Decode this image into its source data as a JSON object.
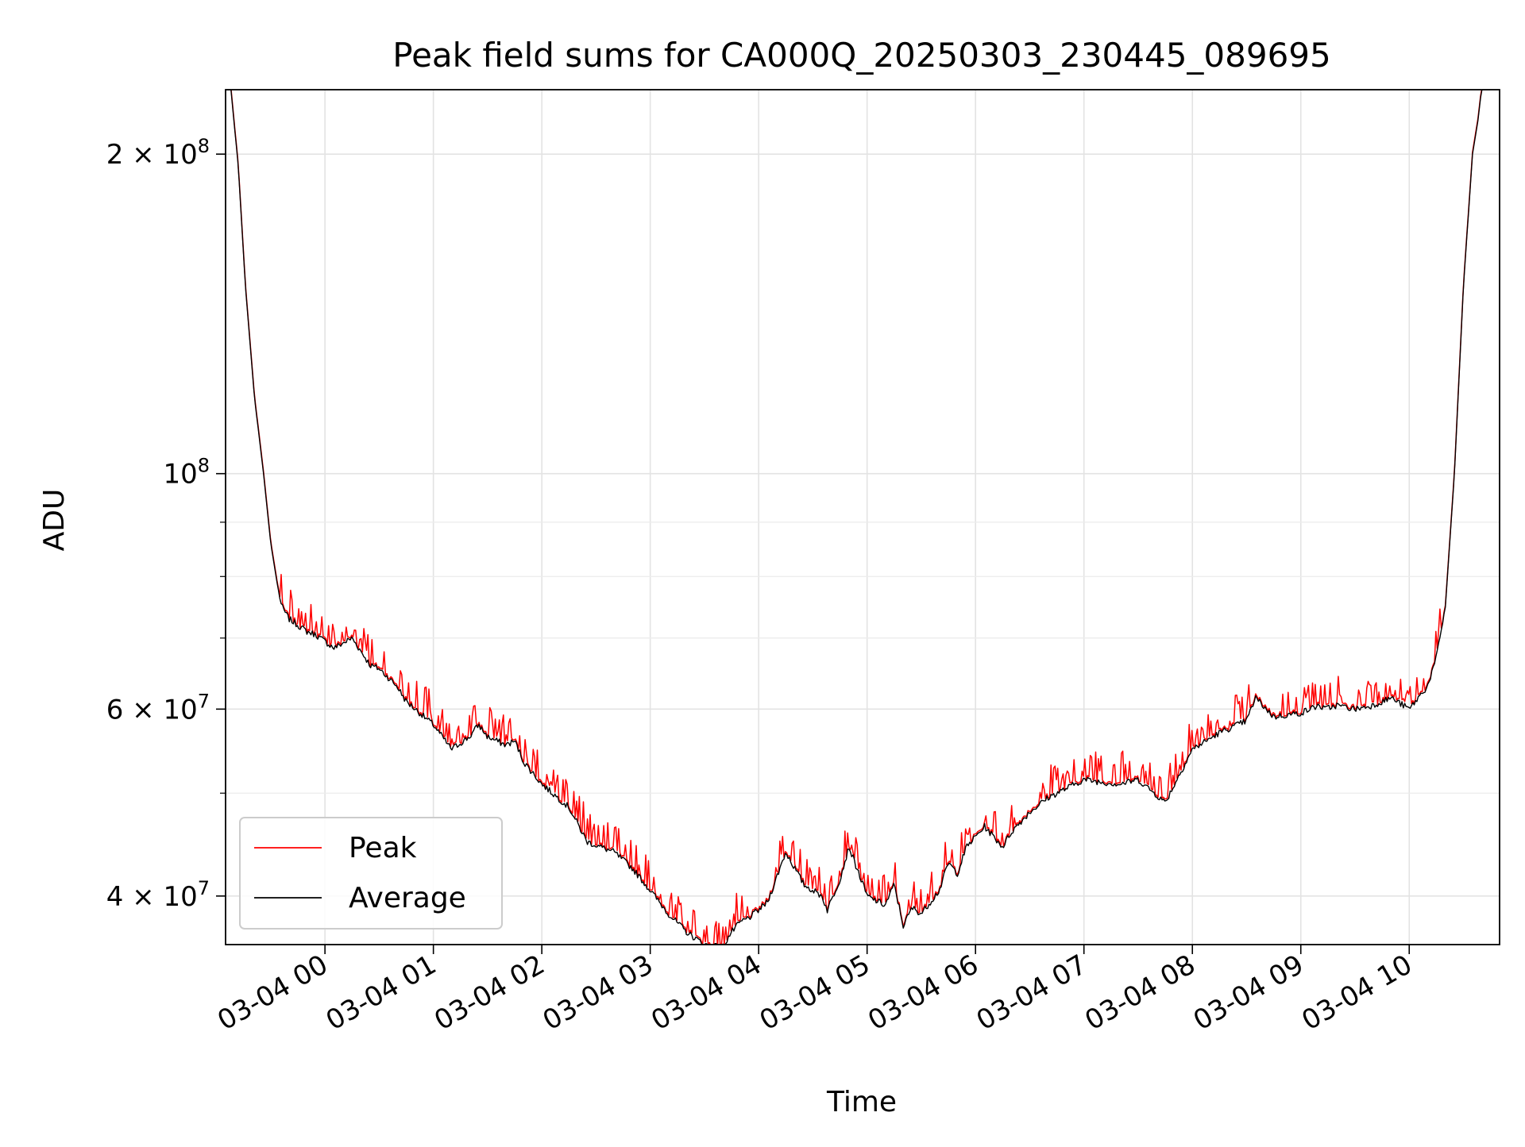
{
  "chart_data": {
    "type": "line",
    "title": "Peak field sums for CA000Q_20250303_230445_089695",
    "xlabel": "Time",
    "ylabel": "ADU",
    "yscale": "log",
    "ylim": [
      36000000,
      230000000
    ],
    "xlim": [
      "2025-03-03 23:05",
      "2025-03-04 10:50"
    ],
    "grid": true,
    "legend_position": "lower-left",
    "x_tick_labels": [
      "03-04 00",
      "03-04 01",
      "03-04 02",
      "03-04 03",
      "03-04 04",
      "03-04 05",
      "03-04 06",
      "03-04 07",
      "03-04 08",
      "03-04 09",
      "03-04 10"
    ],
    "x_ticks": [
      "2025-03-04 00:00",
      "2025-03-04 01:00",
      "2025-03-04 02:00",
      "2025-03-04 03:00",
      "2025-03-04 04:00",
      "2025-03-04 05:00",
      "2025-03-04 06:00",
      "2025-03-04 07:00",
      "2025-03-04 08:00",
      "2025-03-04 09:00",
      "2025-03-04 10:00"
    ],
    "y_major_ticks": [
      {
        "value": 40000000,
        "mantissa": "4",
        "exponent": "7"
      },
      {
        "value": 60000000,
        "mantissa": "6",
        "exponent": "7"
      },
      {
        "value": 100000000,
        "mantissa": "",
        "exponent": "8"
      },
      {
        "value": 200000000,
        "mantissa": "2",
        "exponent": "8"
      }
    ],
    "y_minor_ticks": [
      50000000,
      70000000,
      80000000,
      90000000
    ],
    "series": [
      {
        "name": "Peak",
        "color": "#ff0000",
        "spiky": true
      },
      {
        "name": "Average",
        "color": "#000000",
        "spiky": false
      }
    ],
    "x": [
      "2025-03-03 23:05",
      "2025-03-03 23:08",
      "2025-03-03 23:12",
      "2025-03-03 23:16",
      "2025-03-03 23:21",
      "2025-03-03 23:26",
      "2025-03-03 23:30",
      "2025-03-03 23:34",
      "2025-03-03 23:36",
      "2025-03-03 23:40",
      "2025-03-03 23:45",
      "2025-03-03 23:50",
      "2025-03-03 23:55",
      "2025-03-04 00:05",
      "2025-03-04 00:15",
      "2025-03-04 00:20",
      "2025-03-04 00:25",
      "2025-03-04 00:30",
      "2025-03-04 00:36",
      "2025-03-04 00:40",
      "2025-03-04 00:45",
      "2025-03-04 00:50",
      "2025-03-04 01:00",
      "2025-03-04 01:10",
      "2025-03-04 01:20",
      "2025-03-04 01:25",
      "2025-03-04 01:30",
      "2025-03-04 01:35",
      "2025-03-04 01:40",
      "2025-03-04 01:45",
      "2025-03-04 01:50",
      "2025-03-04 02:00",
      "2025-03-04 02:15",
      "2025-03-04 02:25",
      "2025-03-04 02:40",
      "2025-03-04 02:50",
      "2025-03-04 03:00",
      "2025-03-04 03:10",
      "2025-03-04 03:20",
      "2025-03-04 03:30",
      "2025-03-04 03:40",
      "2025-03-04 03:45",
      "2025-03-04 03:50",
      "2025-03-04 03:55",
      "2025-03-04 04:00",
      "2025-03-04 04:05",
      "2025-03-04 04:15",
      "2025-03-04 04:25",
      "2025-03-04 04:35",
      "2025-03-04 04:38",
      "2025-03-04 04:45",
      "2025-03-04 04:50",
      "2025-03-04 05:00",
      "2025-03-04 05:10",
      "2025-03-04 05:15",
      "2025-03-04 05:20",
      "2025-03-04 05:25",
      "2025-03-04 05:30",
      "2025-03-04 05:40",
      "2025-03-04 05:45",
      "2025-03-04 05:50",
      "2025-03-04 05:55",
      "2025-03-04 06:05",
      "2025-03-04 06:10",
      "2025-03-04 06:15",
      "2025-03-04 06:20",
      "2025-03-04 06:30",
      "2025-03-04 06:40",
      "2025-03-04 06:50",
      "2025-03-04 07:00",
      "2025-03-04 07:10",
      "2025-03-04 07:20",
      "2025-03-04 07:30",
      "2025-03-04 07:45",
      "2025-03-04 08:00",
      "2025-03-04 08:15",
      "2025-03-04 08:30",
      "2025-03-04 08:35",
      "2025-03-04 08:45",
      "2025-03-04 09:00",
      "2025-03-04 09:10",
      "2025-03-04 09:13",
      "2025-03-04 09:20",
      "2025-03-04 09:30",
      "2025-03-04 09:40",
      "2025-03-04 09:50",
      "2025-03-04 10:00",
      "2025-03-04 10:10",
      "2025-03-04 10:15",
      "2025-03-04 10:20",
      "2025-03-04 10:25",
      "2025-03-04 10:30",
      "2025-03-04 10:35",
      "2025-03-04 10:38",
      "2025-03-04 10:40",
      "2025-03-04 10:42",
      "2025-03-04 10:45"
    ],
    "average": [
      230000000,
      230000000,
      195000000,
      150000000,
      118000000,
      100000000,
      86000000,
      78000000,
      75000000,
      73000000,
      72000000,
      71000000,
      70500000,
      68500000,
      70000000,
      68000000,
      66000000,
      65500000,
      64000000,
      63000000,
      61000000,
      60000000,
      58000000,
      55000000,
      56500000,
      58000000,
      56500000,
      56000000,
      55500000,
      56000000,
      53500000,
      51000000,
      48500000,
      45000000,
      44000000,
      42500000,
      40500000,
      38500000,
      37000000,
      36000000,
      35800000,
      37000000,
      37800000,
      38200000,
      38800000,
      39500000,
      44000000,
      41000000,
      40000000,
      38800000,
      41500000,
      44500000,
      40000000,
      39200000,
      41000000,
      37500000,
      39000000,
      38500000,
      40500000,
      43000000,
      42000000,
      44500000,
      46500000,
      45500000,
      44500000,
      46000000,
      48000000,
      49500000,
      50500000,
      51500000,
      51200000,
      51000000,
      51500000,
      49000000,
      55000000,
      57000000,
      58500000,
      61500000,
      59000000,
      59500000,
      60500000,
      60000000,
      60500000,
      60000000,
      60500000,
      61500000,
      60000000,
      63000000,
      67000000,
      75000000,
      100000000,
      150000000,
      200000000,
      215000000,
      230000000,
      230000000,
      230000000
    ]
  }
}
